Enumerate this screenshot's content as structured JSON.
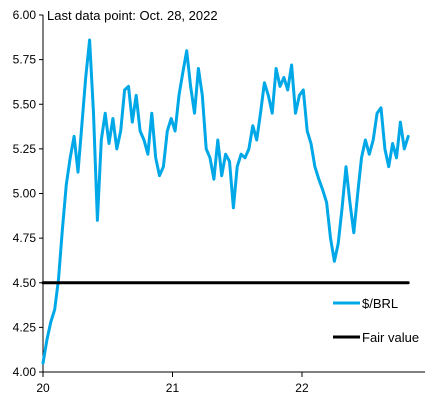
{
  "chart_data": {
    "type": "line",
    "annotation": "Last data point: Oct. 28, 2022",
    "xlabel": "",
    "ylabel": "",
    "ylim": [
      4.0,
      6.0
    ],
    "xlim": [
      2020.0,
      2022.95
    ],
    "x_ticks": [
      {
        "value": 2020,
        "label": "20"
      },
      {
        "value": 2021,
        "label": "21"
      },
      {
        "value": 2022,
        "label": "22"
      }
    ],
    "y_ticks": [
      4.0,
      4.25,
      4.5,
      4.75,
      5.0,
      5.25,
      5.5,
      5.75,
      6.0
    ],
    "y_tick_labels": [
      "4.00",
      "4.25",
      "4.50",
      "4.75",
      "5.00",
      "5.25",
      "5.50",
      "5.75",
      "6.00"
    ],
    "grid": false,
    "legend_position": "right",
    "series": [
      {
        "name": "$/BRL",
        "color": "#00a8e8",
        "x": [
          2020.0,
          2020.03,
          2020.06,
          2020.09,
          2020.12,
          2020.15,
          2020.18,
          2020.21,
          2020.24,
          2020.27,
          2020.3,
          2020.33,
          2020.36,
          2020.39,
          2020.42,
          2020.45,
          2020.48,
          2020.51,
          2020.54,
          2020.57,
          2020.6,
          2020.63,
          2020.66,
          2020.69,
          2020.72,
          2020.75,
          2020.78,
          2020.81,
          2020.84,
          2020.87,
          2020.9,
          2020.93,
          2020.96,
          2020.99,
          2021.02,
          2021.05,
          2021.08,
          2021.11,
          2021.14,
          2021.17,
          2021.2,
          2021.23,
          2021.26,
          2021.29,
          2021.32,
          2021.35,
          2021.38,
          2021.41,
          2021.44,
          2021.47,
          2021.5,
          2021.53,
          2021.56,
          2021.59,
          2021.62,
          2021.65,
          2021.68,
          2021.71,
          2021.74,
          2021.77,
          2021.8,
          2021.83,
          2021.86,
          2021.89,
          2021.92,
          2021.95,
          2021.98,
          2022.01,
          2022.04,
          2022.07,
          2022.1,
          2022.13,
          2022.16,
          2022.19,
          2022.22,
          2022.25,
          2022.28,
          2022.31,
          2022.34,
          2022.37,
          2022.4,
          2022.43,
          2022.46,
          2022.49,
          2022.52,
          2022.55,
          2022.58,
          2022.61,
          2022.64,
          2022.67,
          2022.7,
          2022.73,
          2022.76,
          2022.79,
          2022.82
        ],
        "values": [
          4.05,
          4.18,
          4.28,
          4.35,
          4.52,
          4.8,
          5.05,
          5.2,
          5.32,
          5.12,
          5.38,
          5.65,
          5.86,
          5.45,
          4.85,
          5.3,
          5.45,
          5.28,
          5.42,
          5.25,
          5.35,
          5.58,
          5.6,
          5.4,
          5.55,
          5.35,
          5.3,
          5.22,
          5.45,
          5.2,
          5.1,
          5.15,
          5.35,
          5.42,
          5.35,
          5.55,
          5.68,
          5.8,
          5.6,
          5.45,
          5.7,
          5.55,
          5.25,
          5.2,
          5.08,
          5.3,
          5.1,
          5.22,
          5.18,
          4.92,
          5.15,
          5.22,
          5.2,
          5.25,
          5.38,
          5.3,
          5.45,
          5.62,
          5.55,
          5.45,
          5.7,
          5.6,
          5.65,
          5.58,
          5.72,
          5.45,
          5.55,
          5.58,
          5.35,
          5.28,
          5.15,
          5.08,
          5.02,
          4.95,
          4.75,
          4.62,
          4.72,
          4.92,
          5.15,
          4.95,
          4.78,
          5.0,
          5.2,
          5.3,
          5.22,
          5.3,
          5.45,
          5.48,
          5.25,
          5.15,
          5.28,
          5.2,
          5.4,
          5.25,
          5.32
        ]
      },
      {
        "name": "Fair value",
        "color": "#000000",
        "x": [
          2020.0,
          2022.82
        ],
        "values": [
          4.5,
          4.5
        ]
      }
    ]
  }
}
